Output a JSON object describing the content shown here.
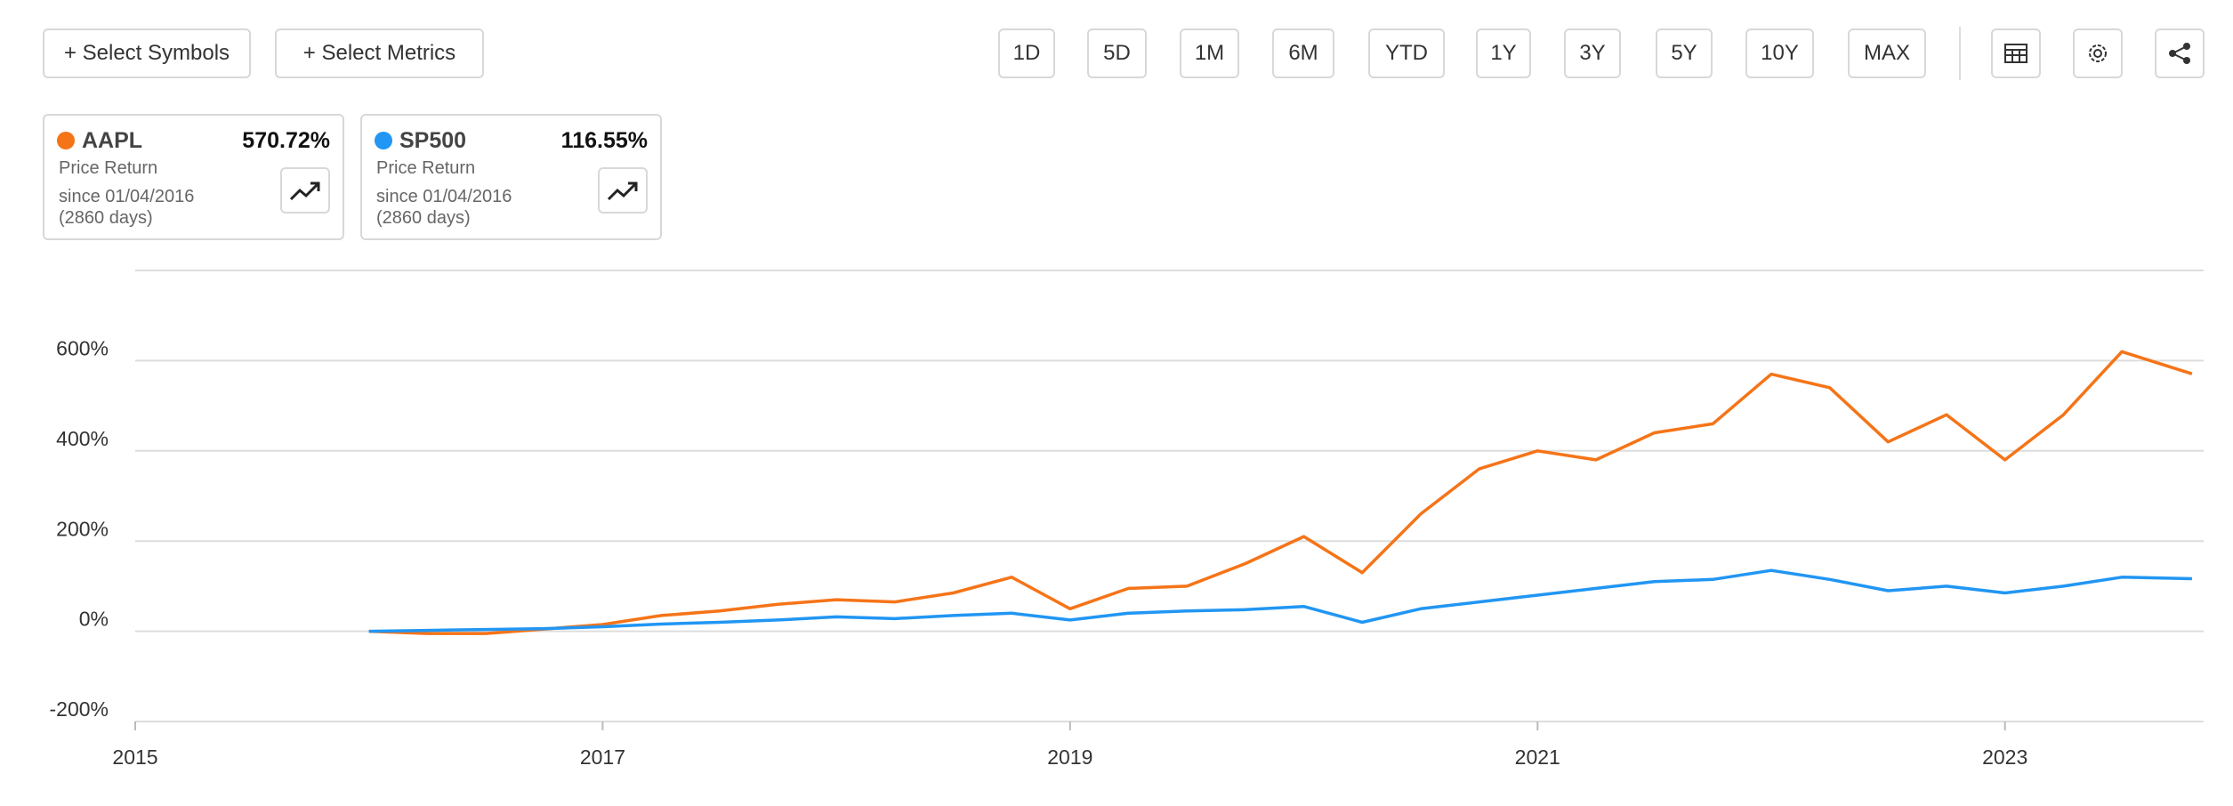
{
  "toolbar": {
    "buttons": [
      "+ Select Symbols",
      "+ Select Metrics"
    ],
    "ranges": [
      "1D",
      "5D",
      "1M",
      "6M",
      "YTD",
      "1Y",
      "3Y",
      "5Y",
      "10Y",
      "MAX"
    ]
  },
  "cards": [
    {
      "change": "570.72%",
      "metric": "Price Return",
      "since": "since 01/04/2016",
      "days": "(2860 days)"
    },
    {
      "change": "116.55%",
      "metric": "Price Return",
      "since": "since 01/04/2016",
      "days": "(2860 days)"
    }
  ],
  "chart_data": {
    "type": "line",
    "x": [
      2016.0,
      2016.25,
      2016.5,
      2016.75,
      2017.0,
      2017.25,
      2017.5,
      2017.75,
      2018.0,
      2018.25,
      2018.5,
      2018.75,
      2019.0,
      2019.25,
      2019.5,
      2019.75,
      2020.0,
      2020.25,
      2020.5,
      2020.75,
      2021.0,
      2021.25,
      2021.5,
      2021.75,
      2022.0,
      2022.25,
      2022.5,
      2022.75,
      2023.0,
      2023.25,
      2023.5,
      2023.8
    ],
    "series": [
      {
        "name": "AAPL",
        "color": "#f57418",
        "values": [
          0,
          -5,
          -5,
          5,
          15,
          35,
          45,
          60,
          70,
          65,
          85,
          120,
          50,
          95,
          100,
          150,
          210,
          130,
          260,
          360,
          400,
          380,
          440,
          460,
          570,
          540,
          420,
          480,
          380,
          480,
          620,
          570.72
        ]
      },
      {
        "name": "SP500",
        "color": "#2196f3",
        "values": [
          0,
          2,
          4,
          6,
          10,
          16,
          20,
          25,
          32,
          28,
          35,
          40,
          25,
          40,
          45,
          48,
          55,
          20,
          50,
          65,
          80,
          95,
          110,
          115,
          135,
          115,
          90,
          100,
          85,
          100,
          120,
          116.55
        ]
      }
    ],
    "xlim": [
      2015,
      2023.85
    ],
    "xticks": [
      2015,
      2017,
      2019,
      2021,
      2023
    ],
    "ylim": [
      -200,
      800
    ],
    "yticks": [
      {
        "value": -200,
        "label": "-200%"
      },
      {
        "value": 0,
        "label": "0%"
      },
      {
        "value": 200,
        "label": "200%"
      },
      {
        "value": 400,
        "label": "400%"
      },
      {
        "value": 600,
        "label": "600%"
      }
    ],
    "grid": true
  }
}
